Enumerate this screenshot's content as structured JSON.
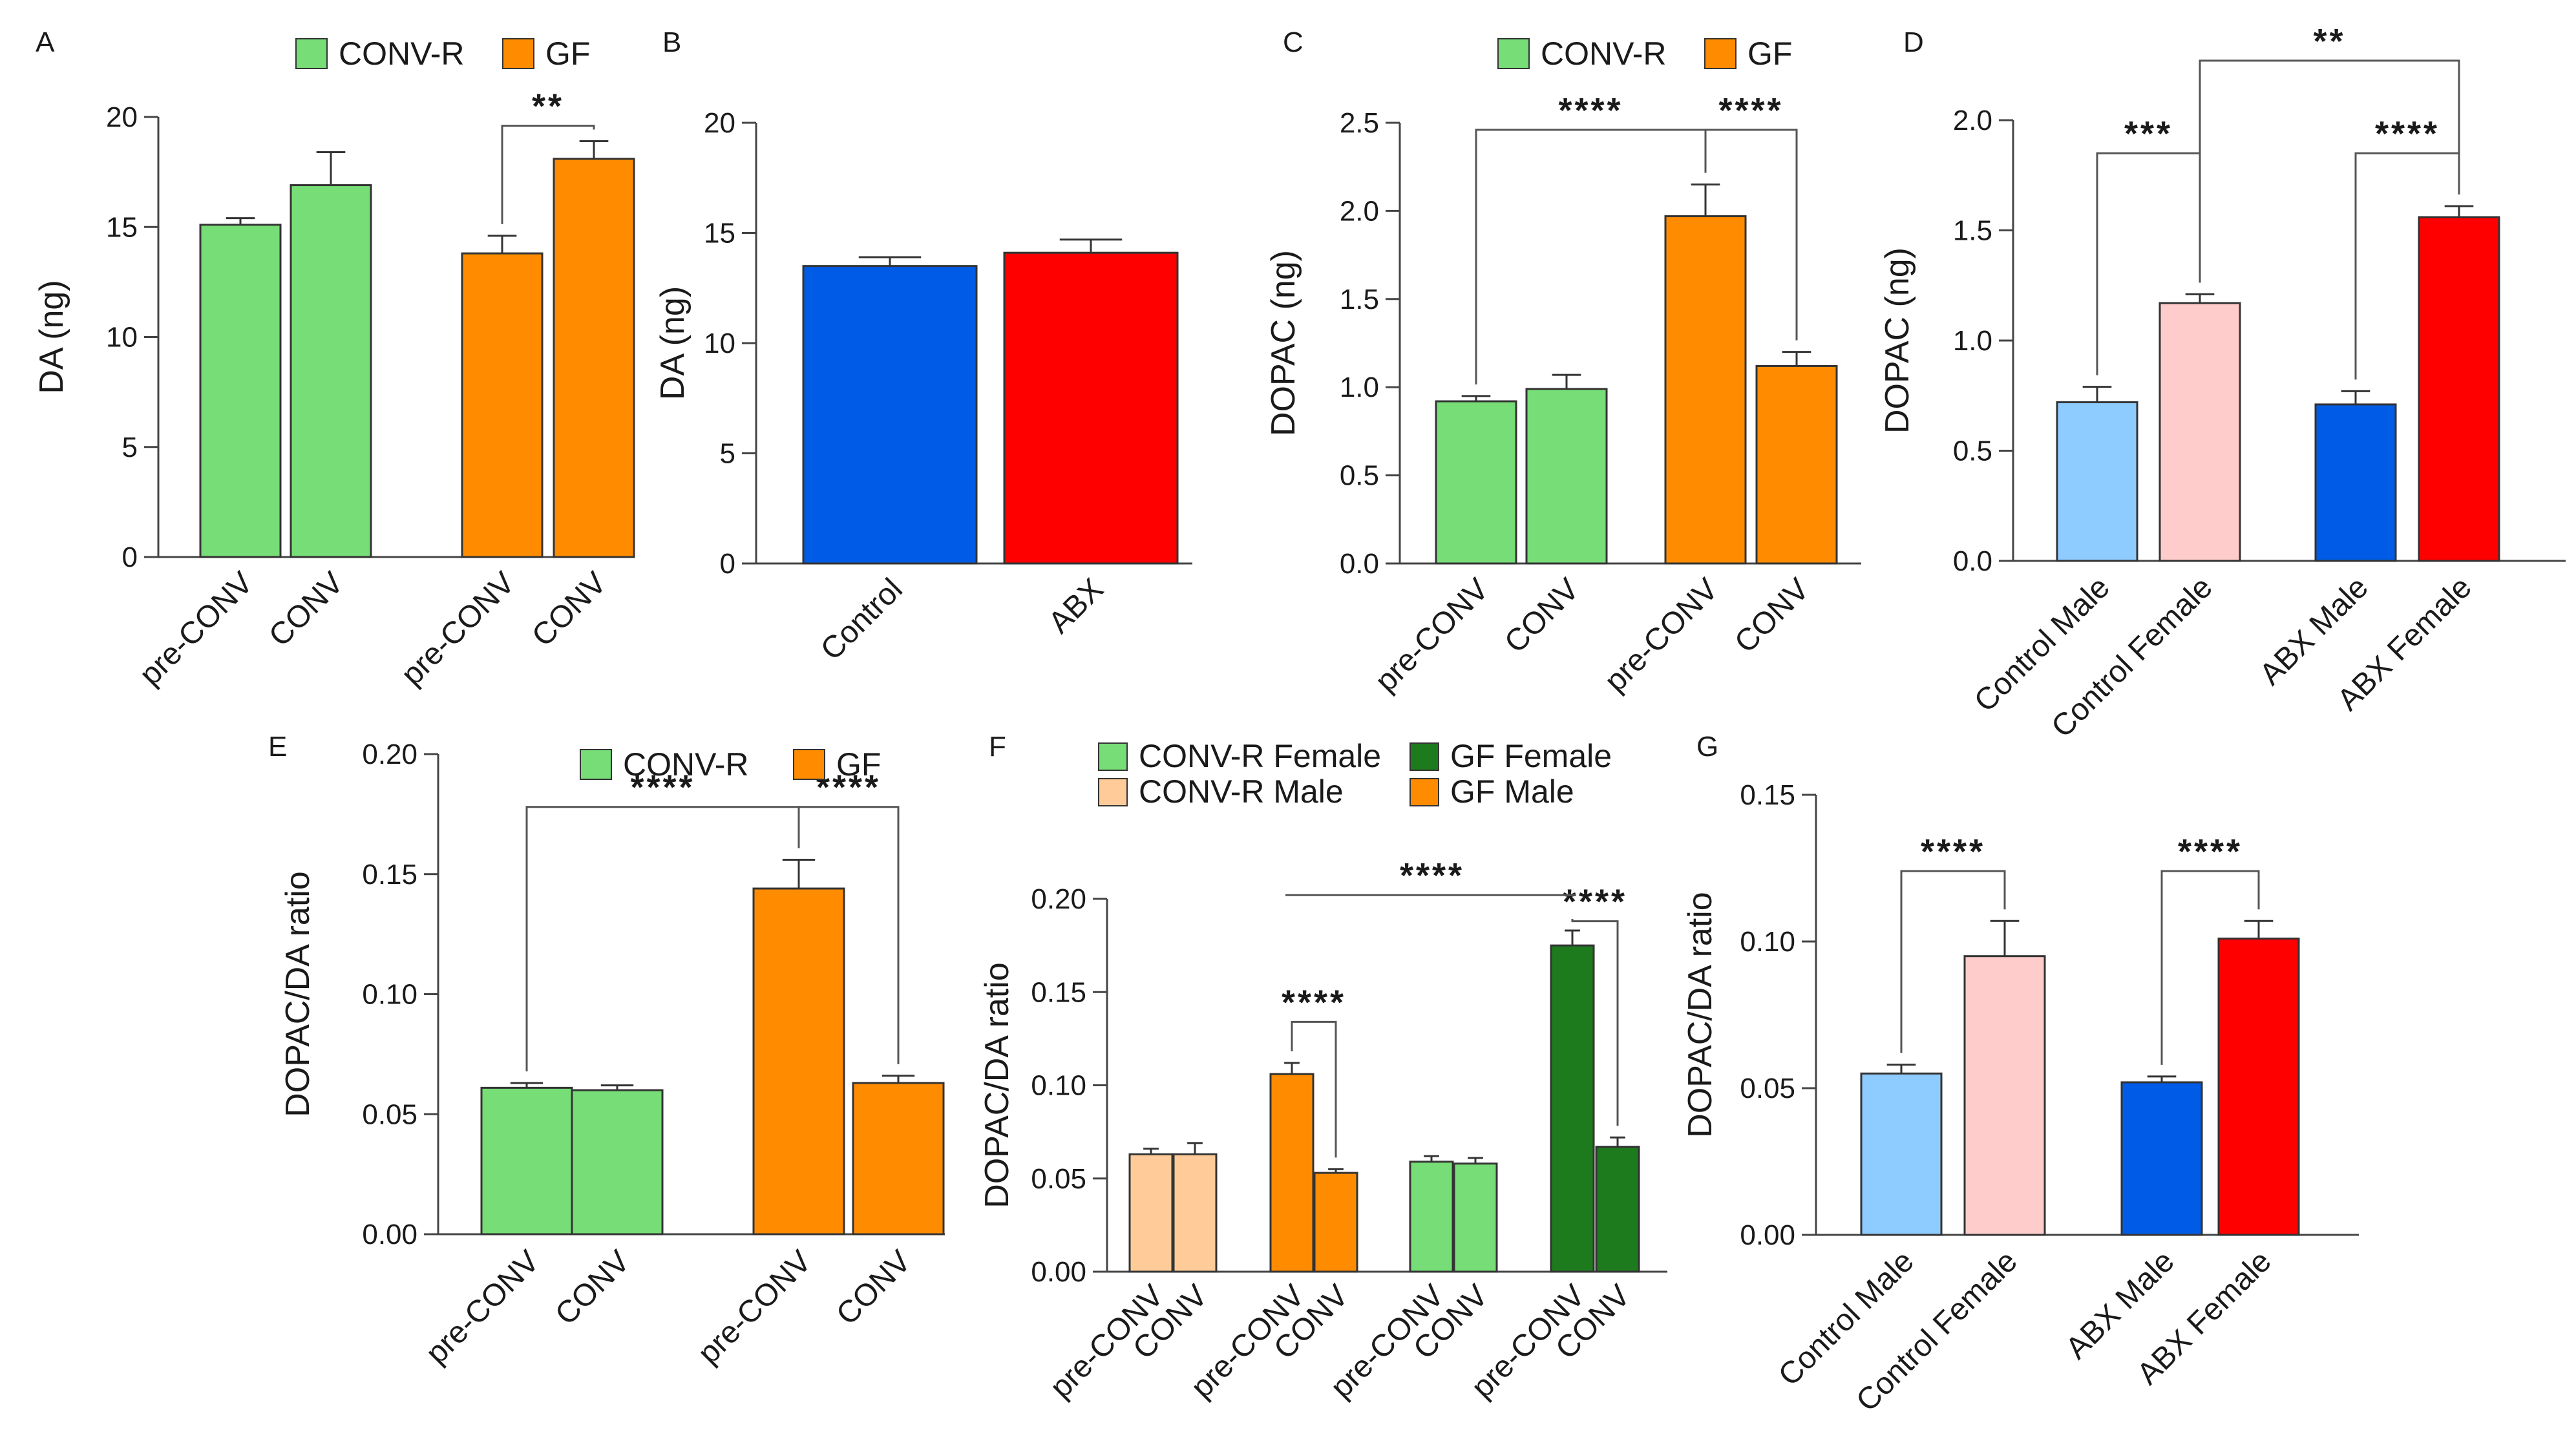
{
  "colors": {
    "conv_r": "#77dd77",
    "gf": "#ff8c00",
    "control": "#005ce6",
    "abx": "#ff0000",
    "control_male": "#8ecbff",
    "control_female": "#ffcccc",
    "abx_male": "#005ce6",
    "abx_female": "#ff0000",
    "conv_r_female": "#77dd77",
    "conv_r_male": "#ffcc99",
    "gf_female": "#1d7a1d",
    "gf_male": "#ff8c00"
  },
  "chart_data": [
    {
      "id": "A",
      "letter": "A",
      "type": "bar",
      "ylabel": "DA (ng)",
      "ylim": [
        0,
        20
      ],
      "yticks": [
        0,
        5,
        10,
        15,
        20
      ],
      "tick_decimals": 0,
      "legend": [
        {
          "name": "CONV-R",
          "color_key": "conv_r"
        },
        {
          "name": "GF",
          "color_key": "gf"
        }
      ],
      "bars": [
        {
          "category": "pre-CONV",
          "value": 15.1,
          "error": 0.3,
          "color_key": "conv_r"
        },
        {
          "category": "CONV",
          "value": 16.9,
          "error": 1.5,
          "color_key": "conv_r"
        },
        {
          "category": "pre-CONV",
          "value": 13.8,
          "error": 0.8,
          "color_key": "gf"
        },
        {
          "category": "CONV",
          "value": 18.1,
          "error": 0.8,
          "color_key": "gf"
        }
      ],
      "significance": [
        {
          "from": 2,
          "to": 3,
          "y": 19.6,
          "label": "**"
        }
      ]
    },
    {
      "id": "B",
      "letter": "B",
      "type": "bar",
      "ylabel": "DA (ng)",
      "ylim": [
        0,
        20
      ],
      "yticks": [
        0,
        5,
        10,
        15,
        20
      ],
      "tick_decimals": 0,
      "legend": [],
      "bars": [
        {
          "category": "Control",
          "value": 13.5,
          "error": 0.4,
          "color_key": "control"
        },
        {
          "category": "ABX",
          "value": 14.1,
          "error": 0.6,
          "color_key": "abx"
        }
      ],
      "significance": []
    },
    {
      "id": "C",
      "letter": "C",
      "type": "bar",
      "ylabel": "DOPAC (ng)",
      "ylim": [
        0,
        2.5
      ],
      "yticks": [
        0,
        0.5,
        1.0,
        1.5,
        2.0,
        2.5
      ],
      "tick_decimals": 1,
      "legend": [
        {
          "name": "CONV-R",
          "color_key": "conv_r"
        },
        {
          "name": "GF",
          "color_key": "gf"
        }
      ],
      "bars": [
        {
          "category": "pre-CONV",
          "value": 0.92,
          "error": 0.03,
          "color_key": "conv_r"
        },
        {
          "category": "CONV",
          "value": 0.99,
          "error": 0.08,
          "color_key": "conv_r"
        },
        {
          "category": "pre-CONV",
          "value": 1.97,
          "error": 0.18,
          "color_key": "gf"
        },
        {
          "category": "CONV",
          "value": 1.12,
          "error": 0.08,
          "color_key": "gf"
        }
      ],
      "significance": [
        {
          "from": 0,
          "to": 2,
          "y": 2.46,
          "label": "****"
        },
        {
          "from": 2,
          "to": 3,
          "y": 2.46,
          "label": "****"
        }
      ]
    },
    {
      "id": "D",
      "letter": "D",
      "type": "bar",
      "ylabel": "DOPAC (ng)",
      "ylim": [
        0,
        2.0
      ],
      "yticks": [
        0,
        0.5,
        1.0,
        1.5,
        2.0
      ],
      "tick_decimals": 1,
      "legend": [],
      "bars": [
        {
          "category": "Control Male",
          "value": 0.72,
          "error": 0.07,
          "color_key": "control_male"
        },
        {
          "category": "Control Female",
          "value": 1.17,
          "error": 0.04,
          "color_key": "control_female"
        },
        {
          "category": "ABX Male",
          "value": 0.71,
          "error": 0.06,
          "color_key": "abx_male"
        },
        {
          "category": "ABX Female",
          "value": 1.56,
          "error": 0.05,
          "color_key": "abx_female"
        }
      ],
      "significance": [
        {
          "from": 0,
          "to": 1,
          "y": 1.85,
          "label": "***"
        },
        {
          "from": 2,
          "to": 3,
          "y": 1.85,
          "label": "****"
        },
        {
          "from": 1,
          "to": 3,
          "y": 2.27,
          "label": "**"
        }
      ]
    },
    {
      "id": "E",
      "letter": "E",
      "type": "bar",
      "ylabel": "DOPAC/DA ratio",
      "ylim": [
        0,
        0.2
      ],
      "yticks": [
        0,
        0.05,
        0.1,
        0.15,
        0.2
      ],
      "tick_decimals": 2,
      "legend": [
        {
          "name": "CONV-R",
          "color_key": "conv_r"
        },
        {
          "name": "GF",
          "color_key": "gf"
        }
      ],
      "bars": [
        {
          "category": "pre-CONV",
          "value": 0.061,
          "error": 0.002,
          "color_key": "conv_r"
        },
        {
          "category": "CONV",
          "value": 0.06,
          "error": 0.002,
          "color_key": "conv_r"
        },
        {
          "category": "pre-CONV",
          "value": 0.144,
          "error": 0.012,
          "color_key": "gf"
        },
        {
          "category": "CONV",
          "value": 0.063,
          "error": 0.003,
          "color_key": "gf"
        }
      ],
      "significance": [
        {
          "from": 0,
          "to": 2,
          "y": 0.178,
          "label": "****"
        },
        {
          "from": 2,
          "to": 3,
          "y": 0.178,
          "label": "****"
        }
      ]
    },
    {
      "id": "F",
      "letter": "F",
      "type": "bar",
      "ylabel": "DOPAC/DA ratio",
      "ylim": [
        0,
        0.2
      ],
      "yticks": [
        0,
        0.05,
        0.1,
        0.15,
        0.2
      ],
      "tick_decimals": 2,
      "legend": [
        {
          "name": "CONV-R Female",
          "color_key": "conv_r_female"
        },
        {
          "name": "GF Female",
          "color_key": "gf_female"
        },
        {
          "name": "CONV-R Male",
          "color_key": "conv_r_male"
        },
        {
          "name": "GF Male",
          "color_key": "gf_male"
        }
      ],
      "bars": [
        {
          "category": "pre-CONV",
          "value": 0.063,
          "error": 0.003,
          "color_key": "conv_r_male"
        },
        {
          "category": "CONV",
          "value": 0.063,
          "error": 0.006,
          "color_key": "conv_r_male"
        },
        {
          "category": "pre-CONV",
          "value": 0.106,
          "error": 0.006,
          "color_key": "gf_male"
        },
        {
          "category": "CONV",
          "value": 0.053,
          "error": 0.002,
          "color_key": "gf_male"
        },
        {
          "category": "pre-CONV",
          "value": 0.059,
          "error": 0.003,
          "color_key": "conv_r_female"
        },
        {
          "category": "CONV",
          "value": 0.058,
          "error": 0.003,
          "color_key": "conv_r_female"
        },
        {
          "category": "pre-CONV",
          "value": 0.175,
          "error": 0.008,
          "color_key": "gf_female"
        },
        {
          "category": "CONV",
          "value": 0.067,
          "error": 0.005,
          "color_key": "gf_female"
        }
      ],
      "significance": [
        {
          "from": 2,
          "to": 3,
          "y": 0.134,
          "label": "****"
        },
        {
          "from": 6,
          "to": 7,
          "y": 0.188,
          "label": "****"
        },
        {
          "from": 2,
          "to": 6,
          "y": 0.202,
          "label": "****",
          "span": true
        }
      ]
    },
    {
      "id": "G",
      "letter": "G",
      "type": "bar",
      "ylabel": "DOPAC/DA ratio",
      "ylim": [
        0,
        0.15
      ],
      "yticks": [
        0,
        0.05,
        0.1,
        0.15
      ],
      "tick_decimals": 2,
      "legend": [],
      "bars": [
        {
          "category": "Control Male",
          "value": 0.055,
          "error": 0.003,
          "color_key": "control_male"
        },
        {
          "category": "Control Female",
          "value": 0.095,
          "error": 0.012,
          "color_key": "control_female"
        },
        {
          "category": "ABX Male",
          "value": 0.052,
          "error": 0.002,
          "color_key": "abx_male"
        },
        {
          "category": "ABX Female",
          "value": 0.101,
          "error": 0.006,
          "color_key": "abx_female"
        }
      ],
      "significance": [
        {
          "from": 0,
          "to": 1,
          "y": 0.124,
          "label": "****"
        },
        {
          "from": 2,
          "to": 3,
          "y": 0.124,
          "label": "****"
        }
      ]
    }
  ]
}
